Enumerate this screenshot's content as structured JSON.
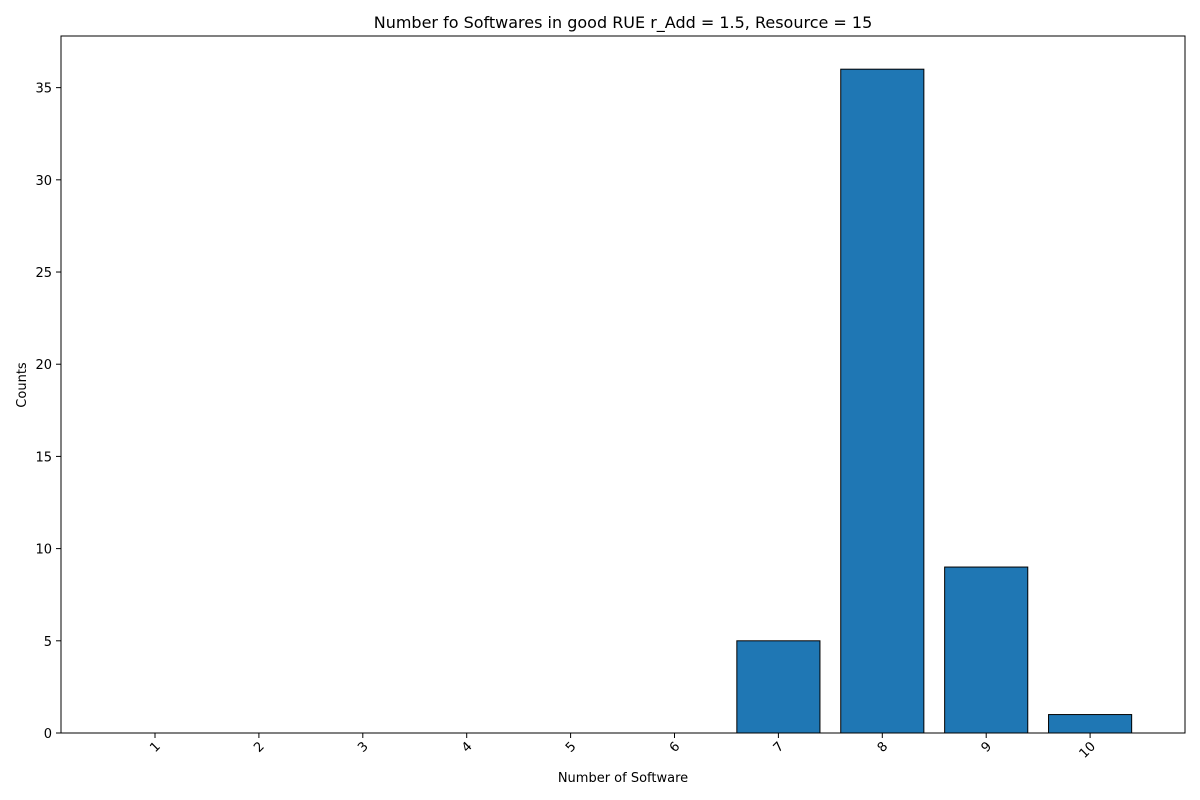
{
  "chart_data": {
    "type": "bar",
    "title": "Number fo Softwares in good RUE r_Add = 1.5, Resource = 15",
    "xlabel": "Number of Software",
    "ylabel": "Counts",
    "categories": [
      "1",
      "2",
      "3",
      "4",
      "5",
      "6",
      "7",
      "8",
      "9",
      "10"
    ],
    "values": [
      0,
      0,
      0,
      0,
      0,
      0,
      5,
      36,
      9,
      1
    ],
    "ylim": [
      0,
      37.8
    ],
    "yticks": [
      0,
      5,
      10,
      15,
      20,
      25,
      30,
      35
    ],
    "bar_color": "#1f77b4",
    "edge_color": "#000000",
    "grid": false,
    "xtick_rotation": 45
  }
}
